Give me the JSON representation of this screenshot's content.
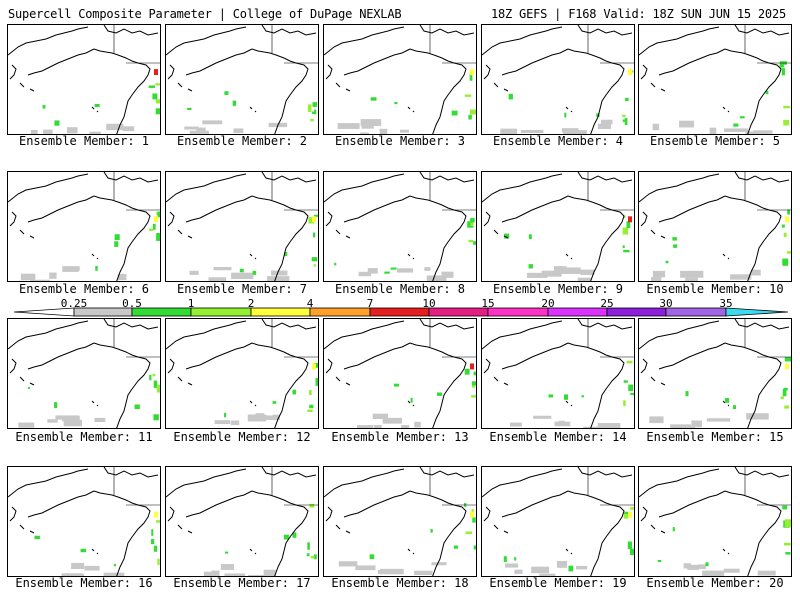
{
  "header": {
    "left": "Supercell Composite Parameter | College of DuPage NEXLAB",
    "right": "18Z GEFS | F168 Valid: 18Z SUN JUN 15 2025"
  },
  "panel_label_prefix": "Ensemble Member: ",
  "members": [
    {
      "label": "Ensemble Member: 1"
    },
    {
      "label": "Ensemble Member: 2"
    },
    {
      "label": "Ensemble Member: 3"
    },
    {
      "label": "Ensemble Member: 4"
    },
    {
      "label": "Ensemble Member: 5"
    },
    {
      "label": "Ensemble Member: 6"
    },
    {
      "label": "Ensemble Member: 7"
    },
    {
      "label": "Ensemble Member: 8"
    },
    {
      "label": "Ensemble Member: 9"
    },
    {
      "label": "Ensemble Member: 10"
    },
    {
      "label": "Ensemble Member: 11"
    },
    {
      "label": "Ensemble Member: 12"
    },
    {
      "label": "Ensemble Member: 13"
    },
    {
      "label": "Ensemble Member: 14"
    },
    {
      "label": "Ensemble Member: 15"
    },
    {
      "label": "Ensemble Member: 16"
    },
    {
      "label": "Ensemble Member: 17"
    },
    {
      "label": "Ensemble Member: 18"
    },
    {
      "label": "Ensemble Member: 19"
    },
    {
      "label": "Ensemble Member: 20"
    }
  ],
  "colorbar": {
    "ticks": [
      "0.25",
      "0.5",
      "1",
      "2",
      "4",
      "7",
      "10",
      "15",
      "20",
      "25",
      "30",
      "35"
    ],
    "colors": [
      "#c8c8c8",
      "#32dc32",
      "#96f032",
      "#ffff3c",
      "#ffa028",
      "#e61e1e",
      "#e61e82",
      "#ff32c8",
      "#dc32ff",
      "#8c1edc",
      "#a064e6",
      "#3cdcf0"
    ]
  }
}
